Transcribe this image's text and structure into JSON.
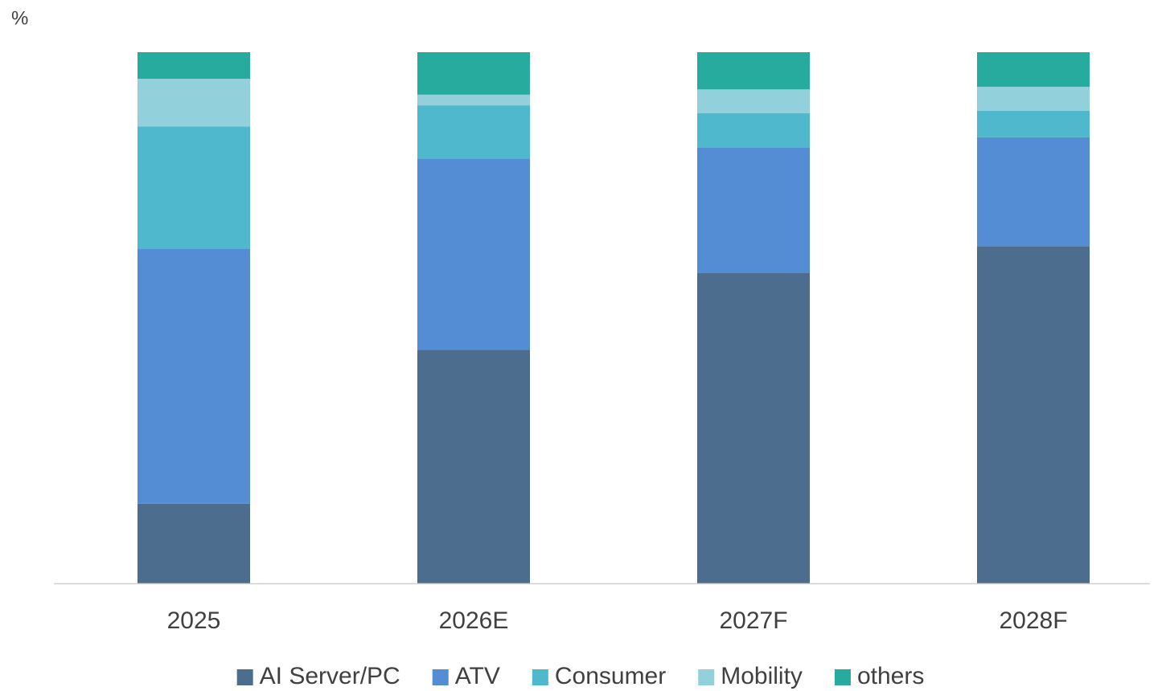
{
  "chart_data": {
    "type": "stacked_bar",
    "ylabel": "%",
    "categories": [
      "2025",
      "2026E",
      "2027F",
      "2028F"
    ],
    "series": [
      {
        "name": "AI Server/PC",
        "color": "#4d6d8f",
        "values": [
          15,
          44,
          58.5,
          63.5
        ]
      },
      {
        "name": "ATV",
        "color": "#548dd4",
        "values": [
          48,
          36,
          23.5,
          20.5
        ]
      },
      {
        "name": "Consumer",
        "color": "#4fb8cc",
        "values": [
          23,
          10,
          6.5,
          5
        ]
      },
      {
        "name": "Mobility",
        "color": "#92d1dc",
        "values": [
          9,
          2,
          4.5,
          4.5
        ]
      },
      {
        "name": "others",
        "color": "#26ab9e",
        "values": [
          5,
          8,
          7,
          6.5
        ]
      }
    ],
    "ylim": [
      0,
      100
    ],
    "legend": "bottom"
  }
}
